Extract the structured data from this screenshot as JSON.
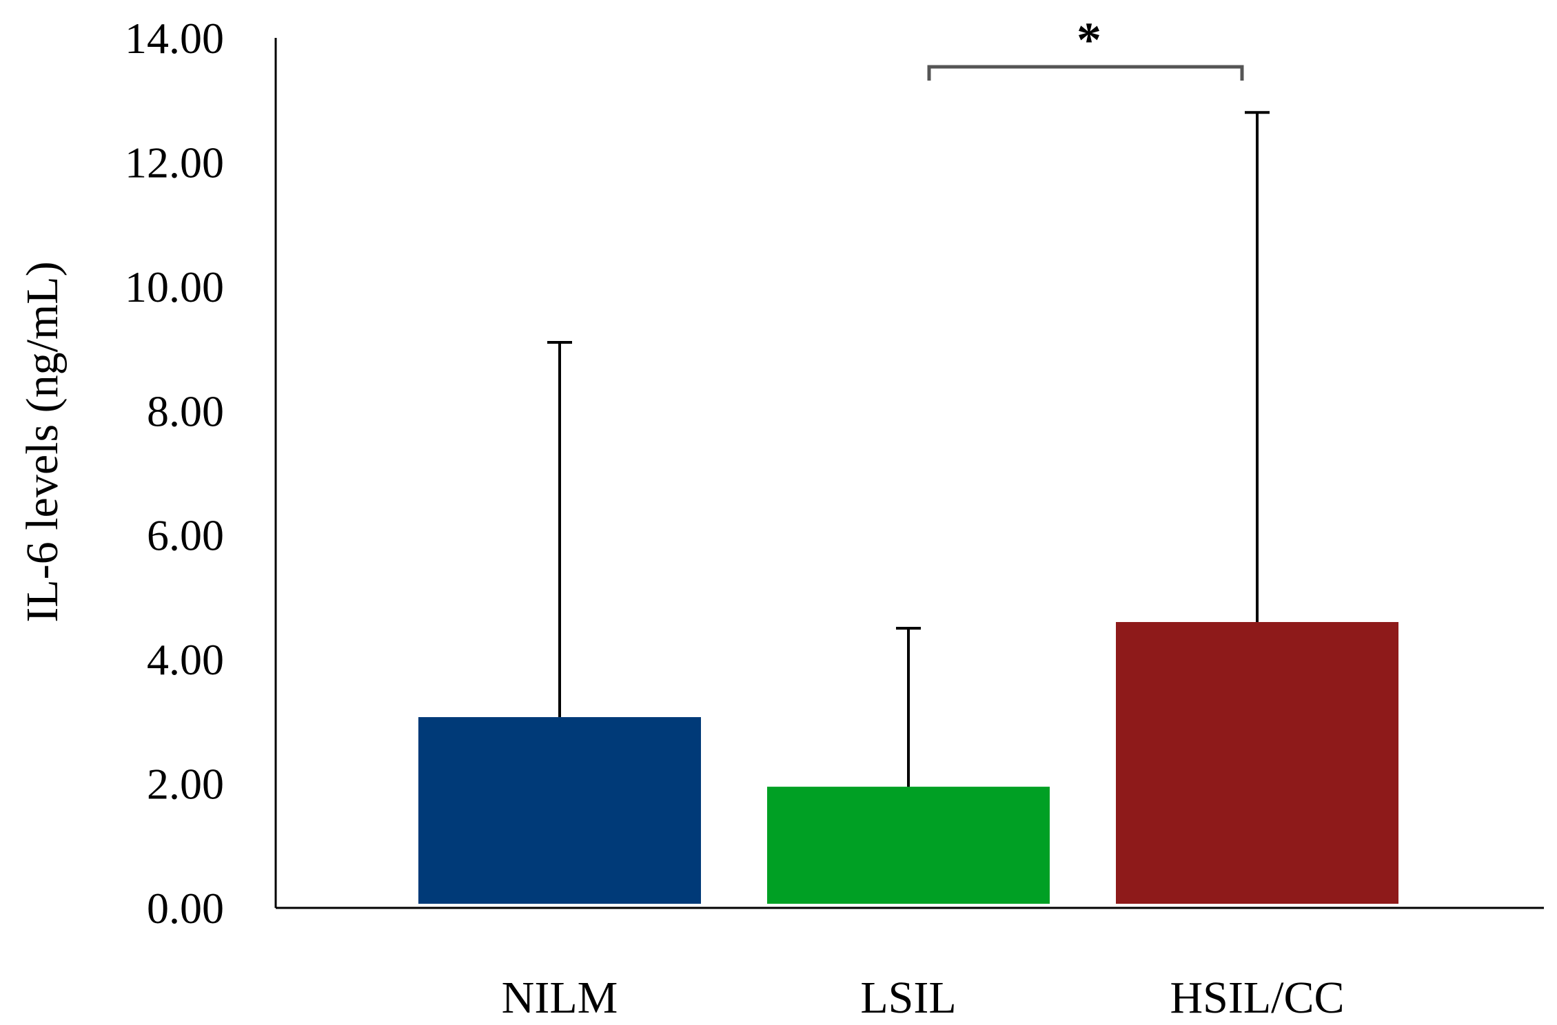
{
  "chart_data": {
    "type": "bar",
    "title": "",
    "xlabel": "",
    "ylabel": "IL-6 levels (ng/mL)",
    "ylim": [
      0,
      14
    ],
    "yticks": [
      0,
      2,
      4,
      6,
      8,
      10,
      12,
      14
    ],
    "ytick_labels": [
      "0.00",
      "2.00",
      "4.00",
      "6.00",
      "8.00",
      "10.00",
      "12.00",
      "14.00"
    ],
    "categories": [
      "NILM",
      "LSIL",
      "HSIL/CC"
    ],
    "values": [
      3.07,
      1.95,
      4.6
    ],
    "error_upper": [
      9.1,
      4.5,
      12.8
    ],
    "colors": [
      "#003a78",
      "#00a024",
      "#8e1a1a"
    ],
    "grid": false,
    "legend": "none",
    "significance": [
      {
        "from": "LSIL",
        "to": "HSIL/CC",
        "label": "*"
      }
    ]
  }
}
